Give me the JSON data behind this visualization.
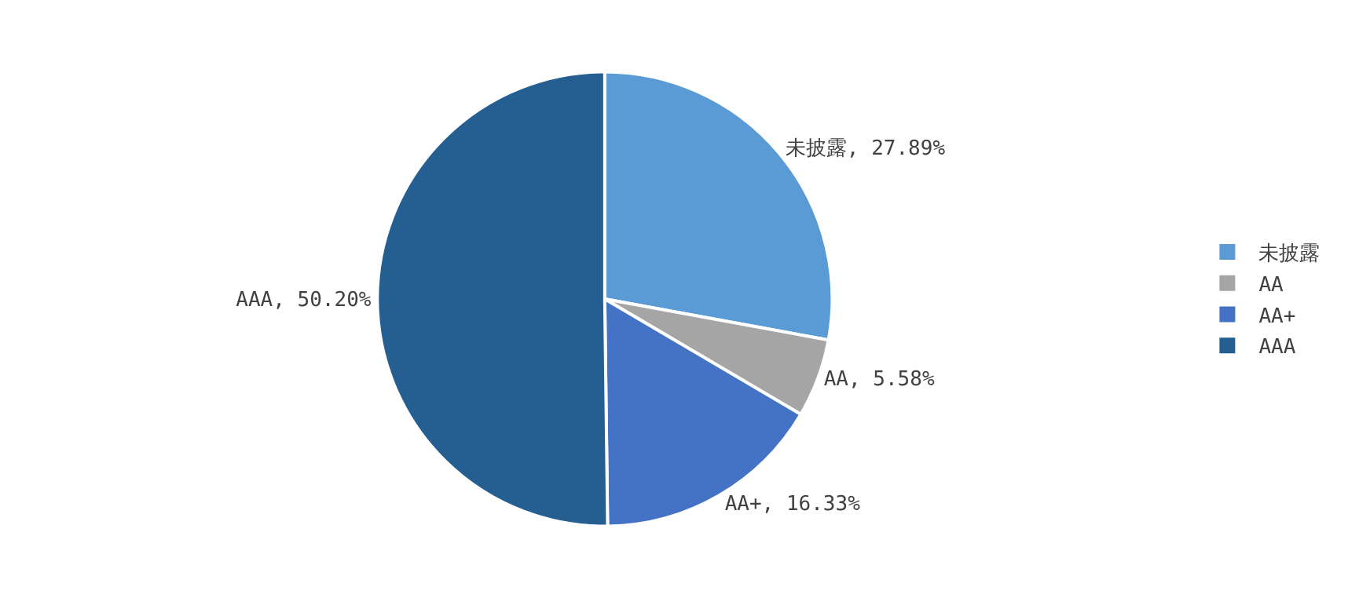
{
  "chart_data": {
    "type": "pie",
    "categories": [
      "未披露",
      "AA",
      "AA+",
      "AAA"
    ],
    "values": [
      27.89,
      5.58,
      16.33,
      50.2
    ],
    "value_labels": [
      "未披露, 27.89%",
      "AA, 5.58%",
      "AA+, 16.33%",
      "AAA, 50.20%"
    ],
    "colors": [
      "#5b9bd5",
      "#a5a5a5",
      "#4472c4",
      "#255e91"
    ],
    "legend": "right"
  }
}
